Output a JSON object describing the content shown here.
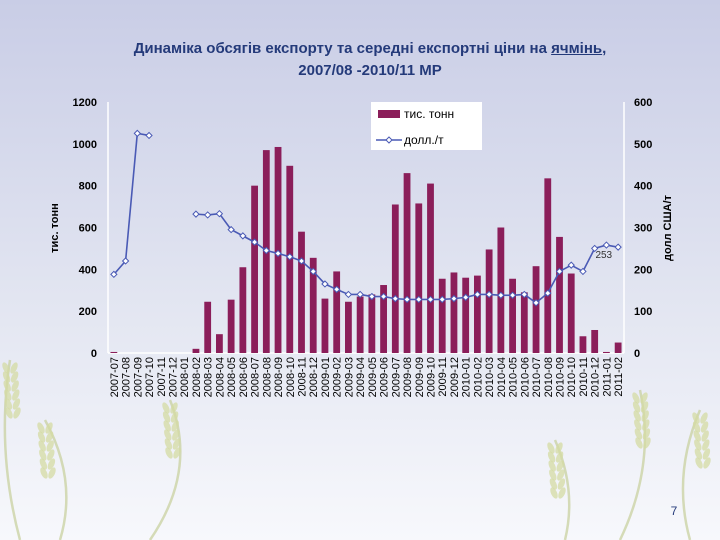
{
  "title": {
    "line1_prefix": "Динаміка обсягів експорту та середні експортні ціни на ",
    "line1_highlight": "ячмінь",
    "line1_suffix": ",",
    "line2": "2007/08 -2010/11 МР"
  },
  "page_number": "7",
  "chart_data": {
    "type": "bar+line",
    "categories": [
      "2007-07",
      "2007-08",
      "2007-09",
      "2007-10",
      "2007-11",
      "2007-12",
      "2008-01",
      "2008-02",
      "2008-03",
      "2008-04",
      "2008-05",
      "2008-06",
      "2008-07",
      "2008-08",
      "2008-09",
      "2008-10",
      "2008-11",
      "2008-12",
      "2009-01",
      "2009-02",
      "2009-03",
      "2009-04",
      "2009-05",
      "2009-06",
      "2009-07",
      "2009-08",
      "2009-09",
      "2009-10",
      "2009-11",
      "2009-12",
      "2010-01",
      "2010-02",
      "2010-03",
      "2010-04",
      "2010-05",
      "2010-06",
      "2010-07",
      "2010-08",
      "2010-09",
      "2010-10",
      "2010-11",
      "2010-12",
      "2011-01",
      "2011-02"
    ],
    "series": [
      {
        "name": "тис. тонн",
        "type": "bar",
        "axis": "left",
        "color": "#8b1e5a",
        "values": [
          5,
          0,
          0,
          0,
          0,
          0,
          0,
          20,
          245,
          90,
          255,
          410,
          800,
          970,
          985,
          895,
          580,
          455,
          260,
          390,
          245,
          270,
          280,
          325,
          710,
          860,
          715,
          810,
          355,
          385,
          360,
          370,
          495,
          600,
          355,
          290,
          415,
          835,
          555,
          380,
          80,
          110,
          5,
          50
        ]
      },
      {
        "name": "долл./т",
        "type": "line",
        "axis": "right",
        "color": "#4a5ab5",
        "values": [
          188,
          220,
          525,
          520,
          null,
          null,
          null,
          332,
          330,
          333,
          295,
          280,
          265,
          245,
          238,
          230,
          220,
          195,
          165,
          152,
          140,
          140,
          135,
          135,
          130,
          128,
          128,
          128,
          128,
          130,
          133,
          140,
          140,
          138,
          138,
          140,
          120,
          143,
          195,
          210,
          195,
          250,
          258,
          253
        ]
      }
    ],
    "annotations": [
      {
        "series": "долл./т",
        "category": "2011-02",
        "text": "253"
      }
    ],
    "ylabel": "тис. тонн",
    "ylabel_right": "долл США/т",
    "ylim": [
      0,
      1200
    ],
    "ylim_right": [
      0,
      600
    ],
    "yticks": [
      0,
      200,
      400,
      600,
      800,
      1000,
      1200
    ],
    "yticks_right": [
      0,
      100,
      200,
      300,
      400,
      500,
      600
    ],
    "legend_position": "top-center",
    "grid": false
  }
}
